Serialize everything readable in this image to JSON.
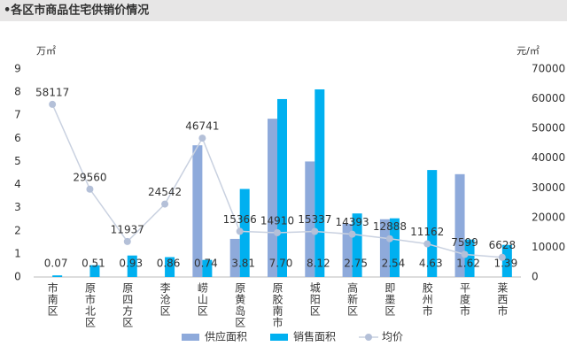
{
  "chart_data": {
    "type": "bar-line",
    "title": "•各区市商品住宅供销价情况",
    "y_label": "万㎡",
    "y2_label": "元/㎡",
    "categories": [
      "市南区",
      "原市北区",
      "原四方区",
      "李沧区",
      "崂山区",
      "原黄岛区",
      "原胶南市",
      "城阳区",
      "高新区",
      "即墨区",
      "胶州市",
      "平度市",
      "莱西市"
    ],
    "series": [
      {
        "name": "供应面积",
        "type": "bar",
        "color": "#8eaadb",
        "values": [
          0,
          0,
          0,
          0,
          5.7,
          1.65,
          6.85,
          5.0,
          2.3,
          2.5,
          0,
          4.45,
          0
        ]
      },
      {
        "name": "销售面积",
        "type": "bar",
        "color": "#00b0f0",
        "values": [
          0.07,
          0.51,
          0.93,
          0.86,
          0.74,
          3.81,
          7.7,
          8.12,
          2.75,
          2.54,
          4.63,
          1.62,
          1.39
        ],
        "value_labels": [
          "0.07",
          "0.51",
          "0.93",
          "0.86",
          "0.74",
          "3.81",
          "7.70",
          "8.12",
          "2.75",
          "2.54",
          "4.63",
          "1.62",
          "1.39"
        ]
      },
      {
        "name": "均价",
        "type": "line",
        "axis": "y2",
        "color": "#b4c0d8",
        "values": [
          58117,
          29560,
          11937,
          24542,
          46741,
          15366,
          14910,
          15337,
          14393,
          12888,
          11162,
          7599,
          6628
        ]
      }
    ],
    "ylim": [
      0,
      9
    ],
    "yticks": [
      0,
      1,
      2,
      3,
      4,
      5,
      6,
      7,
      8,
      9
    ],
    "y2lim": [
      0,
      70000
    ],
    "y2ticks": [
      0,
      10000,
      20000,
      30000,
      40000,
      50000,
      60000,
      70000
    ],
    "grid": false
  }
}
